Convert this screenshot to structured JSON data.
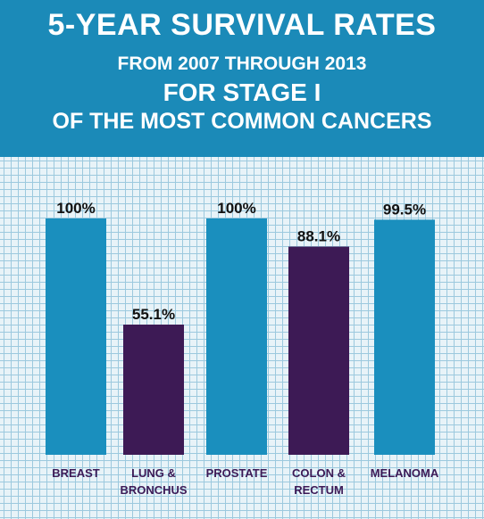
{
  "header": {
    "title": "5-YEAR SURVIVAL RATES",
    "line2": "FROM 2007 THROUGH 2013",
    "line3": "FOR STAGE I",
    "line4": "OF THE MOST COMMON CANCERS"
  },
  "colors": {
    "header_bg": "#1b8ab8",
    "blue_bar": "#1a8fbe",
    "purple_bar": "#3d1a55",
    "category_text": "#3c1a56"
  },
  "chart_data": {
    "type": "bar",
    "title": "5-YEAR SURVIVAL RATES FROM 2007 THROUGH 2013 FOR STAGE I OF THE MOST COMMON CANCERS",
    "categories": [
      [
        "BREAST"
      ],
      [
        "LUNG &",
        "BRONCHUS"
      ],
      [
        "PROSTATE"
      ],
      [
        "COLON &",
        "RECTUM"
      ],
      [
        "MELANOMA"
      ]
    ],
    "values": [
      100,
      55.1,
      100,
      88.1,
      99.5
    ],
    "value_labels": [
      "100%",
      "55.1%",
      "100%",
      "88.1%",
      "99.5%"
    ],
    "bar_colors": [
      "#1a8fbe",
      "#3d1a55",
      "#1a8fbe",
      "#3d1a55",
      "#1a8fbe"
    ],
    "ylim": [
      0,
      100
    ],
    "grid": true
  }
}
